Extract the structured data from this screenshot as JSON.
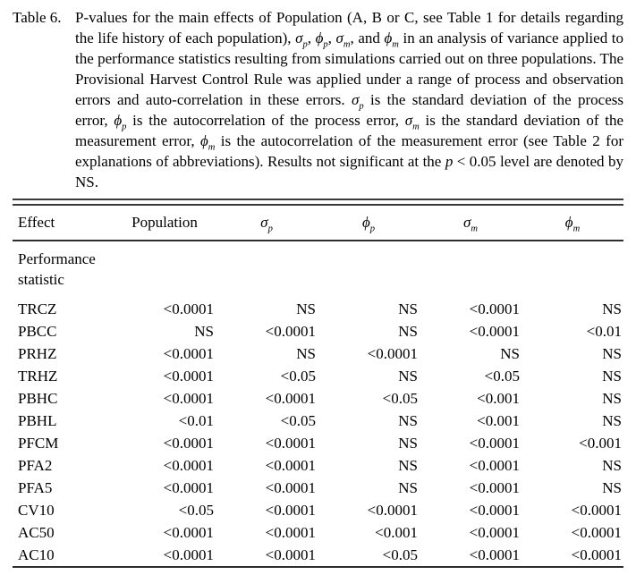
{
  "caption": {
    "label": "Table 6.",
    "segments": [
      {
        "text": "P-values for the main effects of Population (A, B or C, see Table 1 for details regarding the life history of each population), "
      },
      {
        "sym": "σ",
        "sub": "p"
      },
      {
        "text": ", "
      },
      {
        "sym": "ϕ",
        "sub": "p"
      },
      {
        "text": ", "
      },
      {
        "sym": "σ",
        "sub": "m"
      },
      {
        "text": ", and "
      },
      {
        "sym": "ϕ",
        "sub": "m"
      },
      {
        "text": " in an analysis of variance applied to the performance statistics resulting from simulations carried out on three populations. The Provisional Harvest Control Rule was applied under a range of process and observation errors and auto-correlation in these errors. "
      },
      {
        "sym": "σ",
        "sub": "p"
      },
      {
        "text": " is the standard deviation of the process error, "
      },
      {
        "sym": "ϕ",
        "sub": "p"
      },
      {
        "text": " is the autocorrelation of the process error, "
      },
      {
        "sym": "σ",
        "sub": "m"
      },
      {
        "text": " is the standard deviation of the measurement error, "
      },
      {
        "sym": "ϕ",
        "sub": "m"
      },
      {
        "text": " is the autocorrelation of the measurement error (see Table 2 for explanations of abbreviations). Results not significant at the "
      },
      {
        "sym": "p"
      },
      {
        "text": " < 0.05 level are denoted by NS."
      }
    ]
  },
  "table": {
    "columns": [
      {
        "name": "effect",
        "label": "Effect"
      },
      {
        "name": "population",
        "label": "Population"
      },
      {
        "name": "sigma-p",
        "sym": "σ",
        "sub": "p"
      },
      {
        "name": "phi-p",
        "sym": "ϕ",
        "sub": "p"
      },
      {
        "name": "sigma-m",
        "sym": "σ",
        "sub": "m"
      },
      {
        "name": "phi-m",
        "sym": "ϕ",
        "sub": "m"
      }
    ],
    "group_header": "Performance statistic",
    "rows": [
      {
        "effect": "TRCZ",
        "values": [
          "<0.0001",
          "NS",
          "NS",
          "<0.0001",
          "NS"
        ]
      },
      {
        "effect": "PBCC",
        "values": [
          "NS",
          "<0.0001",
          "NS",
          "<0.0001",
          "<0.01"
        ]
      },
      {
        "effect": "PRHZ",
        "values": [
          "<0.0001",
          "NS",
          "<0.0001",
          "NS",
          "NS"
        ]
      },
      {
        "effect": "TRHZ",
        "values": [
          "<0.0001",
          "<0.05",
          "NS",
          "<0.05",
          "NS"
        ]
      },
      {
        "effect": "PBHC",
        "values": [
          "<0.0001",
          "<0.0001",
          "<0.05",
          "<0.001",
          "NS"
        ]
      },
      {
        "effect": "PBHL",
        "values": [
          "<0.01",
          "<0.05",
          "NS",
          "<0.001",
          "NS"
        ]
      },
      {
        "effect": "PFCM",
        "values": [
          "<0.0001",
          "<0.0001",
          "NS",
          "<0.0001",
          "<0.001"
        ]
      },
      {
        "effect": "PFA2",
        "values": [
          "<0.0001",
          "<0.0001",
          "NS",
          "<0.0001",
          "NS"
        ]
      },
      {
        "effect": "PFA5",
        "values": [
          "<0.0001",
          "<0.0001",
          "NS",
          "<0.0001",
          "NS"
        ]
      },
      {
        "effect": "CV10",
        "values": [
          "<0.05",
          "<0.0001",
          "<0.0001",
          "<0.0001",
          "<0.0001"
        ]
      },
      {
        "effect": "AC50",
        "values": [
          "<0.0001",
          "<0.0001",
          "<0.001",
          "<0.0001",
          "<0.0001"
        ]
      },
      {
        "effect": "AC10",
        "values": [
          "<0.0001",
          "<0.0001",
          "<0.05",
          "<0.0001",
          "<0.0001"
        ]
      }
    ]
  },
  "colors": {
    "rule": "#3a3a3a",
    "text": "#000000",
    "background": "#ffffff"
  }
}
